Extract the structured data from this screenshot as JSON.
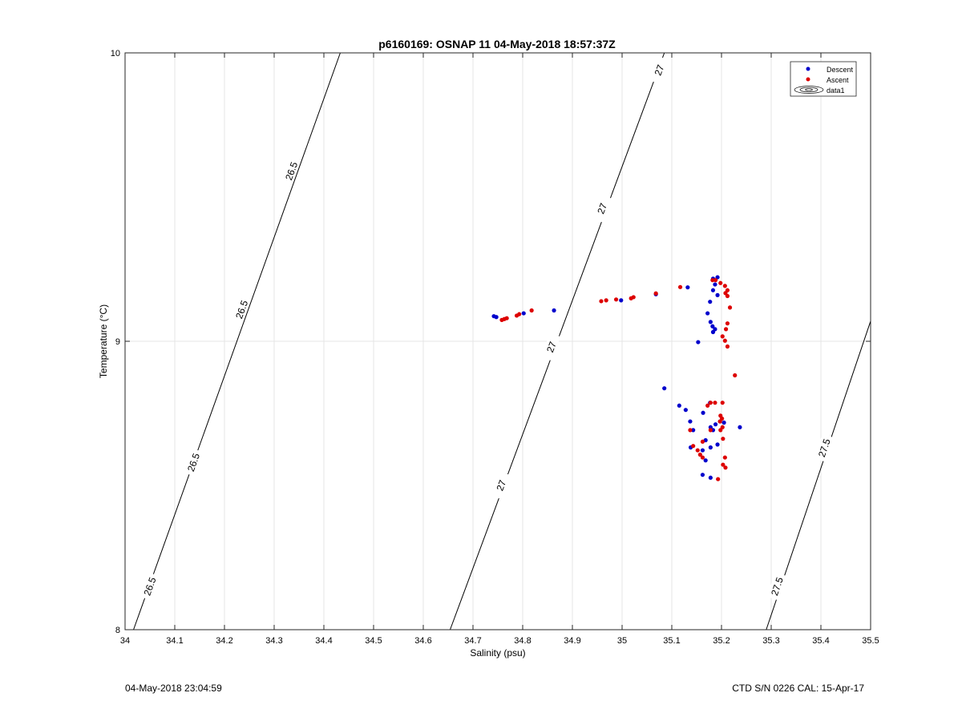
{
  "chart_data": {
    "type": "scatter",
    "title": "p6160169: OSNAP 11 04-May-2018 18:57:37Z",
    "xlabel": "Salinity (psu)",
    "ylabel": "Temperature (°C)",
    "xlim": [
      34,
      35.5
    ],
    "ylim": [
      8,
      10
    ],
    "x_ticks": [
      "34",
      "34.1",
      "34.2",
      "34.3",
      "34.4",
      "34.5",
      "34.6",
      "34.7",
      "34.8",
      "34.9",
      "35",
      "35.1",
      "35.2",
      "35.3",
      "35.4",
      "35.5"
    ],
    "y_ticks": [
      "8",
      "9",
      "10"
    ],
    "grid": true,
    "legend_position": "top-right",
    "legend": [
      "Descent",
      "Ascent",
      "data1"
    ],
    "series": [
      {
        "name": "Descent",
        "color": "#0000cc",
        "points": [
          [
            34.742,
            9.087
          ],
          [
            34.747,
            9.084
          ],
          [
            34.802,
            9.097
          ],
          [
            34.863,
            9.107
          ],
          [
            34.998,
            9.142
          ],
          [
            35.068,
            9.163
          ],
          [
            35.132,
            9.187
          ],
          [
            35.183,
            9.217
          ],
          [
            35.192,
            9.222
          ],
          [
            35.187,
            9.197
          ],
          [
            35.183,
            9.177
          ],
          [
            35.192,
            9.16
          ],
          [
            35.177,
            9.137
          ],
          [
            35.172,
            9.097
          ],
          [
            35.178,
            9.067
          ],
          [
            35.182,
            9.052
          ],
          [
            35.187,
            9.042
          ],
          [
            35.183,
            9.032
          ],
          [
            35.153,
            8.997
          ],
          [
            35.085,
            8.837
          ],
          [
            35.115,
            8.777
          ],
          [
            35.128,
            8.762
          ],
          [
            35.177,
            8.787
          ],
          [
            35.163,
            8.752
          ],
          [
            35.137,
            8.722
          ],
          [
            35.143,
            8.692
          ],
          [
            35.188,
            8.712
          ],
          [
            35.178,
            8.702
          ],
          [
            35.205,
            8.718
          ],
          [
            35.237,
            8.702
          ],
          [
            35.197,
            8.722
          ],
          [
            35.183,
            8.692
          ],
          [
            35.168,
            8.657
          ],
          [
            35.138,
            8.632
          ],
          [
            35.192,
            8.642
          ],
          [
            35.178,
            8.632
          ],
          [
            35.162,
            8.622
          ],
          [
            35.168,
            8.587
          ],
          [
            35.162,
            8.537
          ],
          [
            35.178,
            8.527
          ]
        ]
      },
      {
        "name": "Ascent",
        "color": "#dd0000",
        "points": [
          [
            34.758,
            9.074
          ],
          [
            34.763,
            9.077
          ],
          [
            34.768,
            9.08
          ],
          [
            34.788,
            9.089
          ],
          [
            34.793,
            9.094
          ],
          [
            34.818,
            9.107
          ],
          [
            34.958,
            9.139
          ],
          [
            34.968,
            9.142
          ],
          [
            34.988,
            9.145
          ],
          [
            35.018,
            9.149
          ],
          [
            35.023,
            9.153
          ],
          [
            35.068,
            9.166
          ],
          [
            35.117,
            9.188
          ],
          [
            35.182,
            9.212
          ],
          [
            35.188,
            9.212
          ],
          [
            35.198,
            9.202
          ],
          [
            35.207,
            9.192
          ],
          [
            35.212,
            9.177
          ],
          [
            35.208,
            9.167
          ],
          [
            35.212,
            9.157
          ],
          [
            35.217,
            9.117
          ],
          [
            35.212,
            9.062
          ],
          [
            35.209,
            9.042
          ],
          [
            35.202,
            9.017
          ],
          [
            35.207,
            9.002
          ],
          [
            35.212,
            8.982
          ],
          [
            35.227,
            8.882
          ],
          [
            35.202,
            8.787
          ],
          [
            35.187,
            8.787
          ],
          [
            35.178,
            8.787
          ],
          [
            35.172,
            8.777
          ],
          [
            35.198,
            8.742
          ],
          [
            35.201,
            8.732
          ],
          [
            35.197,
            8.722
          ],
          [
            35.202,
            8.702
          ],
          [
            35.198,
            8.692
          ],
          [
            35.178,
            8.692
          ],
          [
            35.137,
            8.692
          ],
          [
            35.203,
            8.662
          ],
          [
            35.162,
            8.652
          ],
          [
            35.143,
            8.637
          ],
          [
            35.152,
            8.622
          ],
          [
            35.157,
            8.607
          ],
          [
            35.162,
            8.597
          ],
          [
            35.207,
            8.597
          ],
          [
            35.203,
            8.572
          ],
          [
            35.208,
            8.562
          ],
          [
            35.193,
            8.522
          ]
        ]
      }
    ],
    "isopycnals": [
      {
        "label": "26.5",
        "line": [
          [
            34.017,
            8.0
          ],
          [
            34.433,
            10.0
          ]
        ],
        "label_points": [
          [
            34.05,
            8.15
          ],
          [
            34.138,
            8.58
          ],
          [
            34.235,
            9.11
          ],
          [
            34.335,
            9.59
          ]
        ]
      },
      {
        "label": "27",
        "line": [
          [
            34.654,
            8.0
          ],
          [
            35.085,
            10.0
          ]
        ],
        "label_points": [
          [
            34.757,
            8.5
          ],
          [
            34.858,
            8.98
          ],
          [
            34.96,
            9.46
          ],
          [
            35.075,
            9.94
          ]
        ]
      },
      {
        "label": "27.5",
        "line": [
          [
            35.29,
            8.0
          ],
          [
            35.5,
            9.07
          ]
        ],
        "label_points": [
          [
            35.312,
            8.15
          ],
          [
            35.407,
            8.63
          ]
        ]
      }
    ]
  },
  "footer": {
    "timestamp": "04-May-2018 23:04:59",
    "instrument": "CTD S/N 0226  CAL: 15-Apr-17"
  }
}
